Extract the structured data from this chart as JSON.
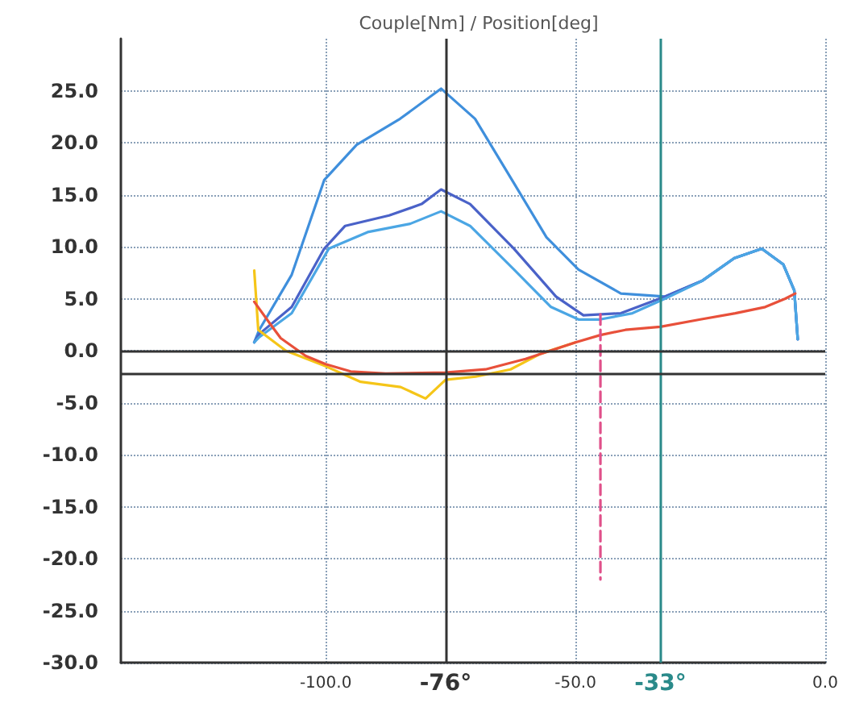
{
  "chart_data": {
    "type": "line",
    "title": "Couple[Nm] / Position[deg]",
    "xlim": [
      -141,
      0
    ],
    "xticks": [
      {
        "value": -100,
        "label": "-100.0"
      },
      {
        "value": -50,
        "label": "-50.0"
      },
      {
        "value": 0,
        "label": "0.0"
      }
    ],
    "ylim": [
      -30,
      30
    ],
    "yticks": [
      {
        "value": -30,
        "label": "-30.0"
      },
      {
        "value": -25,
        "label": "-25.0"
      },
      {
        "value": -20,
        "label": "-20.0"
      },
      {
        "value": -15,
        "label": "-15.0"
      },
      {
        "value": -10,
        "label": "-10.0"
      },
      {
        "value": -5,
        "label": "-5.0"
      },
      {
        "value": 0,
        "label": "0.0"
      },
      {
        "value": 5,
        "label": "5.0"
      },
      {
        "value": 10,
        "label": "10.0"
      },
      {
        "value": 15,
        "label": "15.0"
      },
      {
        "value": 20,
        "label": "20.0"
      },
      {
        "value": 25,
        "label": "25.0"
      }
    ],
    "grid": true,
    "marker": "none",
    "line_style": "solid",
    "series": [
      {
        "color": "#3f8fdc",
        "x": [
          -114.3,
          -113.3,
          -106.8,
          -100.3,
          -93.8,
          -85.1,
          -76.9,
          -70.1,
          -62.3,
          -55.8,
          -49.4,
          -40.9,
          -32.1,
          -24.7,
          -18.2,
          -12.7,
          -8.4,
          -6.2,
          -5.5
        ],
        "values": [
          0.8,
          2.0,
          7.3,
          16.4,
          19.8,
          22.3,
          25.2,
          22.3,
          16.1,
          10.9,
          7.8,
          5.5,
          5.2,
          6.7,
          8.9,
          9.8,
          8.3,
          5.8,
          1.1
        ]
      },
      {
        "color": "#4a62c8",
        "x": [
          -114.3,
          -113.3,
          -106.8,
          -100.3,
          -96.1,
          -87.3,
          -80.8,
          -76.9,
          -71.1,
          -62.3,
          -53.9,
          -48.4,
          -40.9,
          -32.1,
          -24.7,
          -18.2,
          -12.7,
          -8.4,
          -6.2,
          -5.5
        ],
        "values": [
          0.8,
          1.6,
          4.2,
          9.8,
          12.0,
          13.0,
          14.1,
          15.5,
          14.1,
          9.8,
          5.2,
          3.4,
          3.6,
          5.2,
          6.7,
          8.9,
          9.8,
          8.3,
          5.8,
          1.1
        ]
      },
      {
        "color": "#4ba6e4",
        "x": [
          -114.3,
          -113.3,
          -106.8,
          -99.4,
          -91.6,
          -83.1,
          -76.9,
          -71.1,
          -62.3,
          -54.9,
          -49.4,
          -45.1,
          -38.6,
          -32.1,
          -24.7,
          -18.2,
          -12.7,
          -8.4,
          -6.2,
          -5.5
        ],
        "values": [
          0.8,
          1.3,
          3.6,
          9.8,
          11.4,
          12.2,
          13.4,
          12.0,
          7.8,
          4.2,
          3.0,
          3.0,
          3.6,
          5.0,
          6.7,
          8.9,
          9.8,
          8.3,
          5.8,
          1.1
        ]
      },
      {
        "color": "#f5c518",
        "x": [
          -114.3,
          -113.5,
          -108,
          -100,
          -93,
          -85,
          -80,
          -76,
          -70,
          -63,
          -57,
          -50
        ],
        "values": [
          7.7,
          2.0,
          0.0,
          -1.5,
          -3.0,
          -3.5,
          -4.6,
          -2.8,
          -2.5,
          -1.8,
          -0.3,
          0.8
        ]
      },
      {
        "color": "#e8503a",
        "x": [
          -114.3,
          -111,
          -109,
          -104,
          -100,
          -95,
          -88,
          -76,
          -68,
          -60,
          -55,
          -50,
          -45,
          -40,
          -33,
          -25,
          -18,
          -12,
          -8,
          -6
        ],
        "values": [
          4.7,
          2.5,
          1.2,
          -0.5,
          -1.3,
          -2.0,
          -2.2,
          -2.1,
          -1.8,
          -0.8,
          0.0,
          0.8,
          1.5,
          2.0,
          2.3,
          3.0,
          3.6,
          4.2,
          5.0,
          5.5
        ]
      },
      {
        "color": "#e0508a",
        "line_style": "dashed",
        "x": [
          -45,
          -45
        ],
        "values": [
          3.5,
          -22
        ]
      }
    ],
    "ref_lines": [
      {
        "axis": "x",
        "value": -76,
        "label": "-76°",
        "color": "#333333"
      },
      {
        "axis": "x",
        "value": -33,
        "label": "-33°",
        "color": "#2a8a8a"
      },
      {
        "axis": "y",
        "value": 0,
        "color": "#333333"
      },
      {
        "axis": "y",
        "value": -2.2,
        "color": "#333333"
      }
    ]
  }
}
